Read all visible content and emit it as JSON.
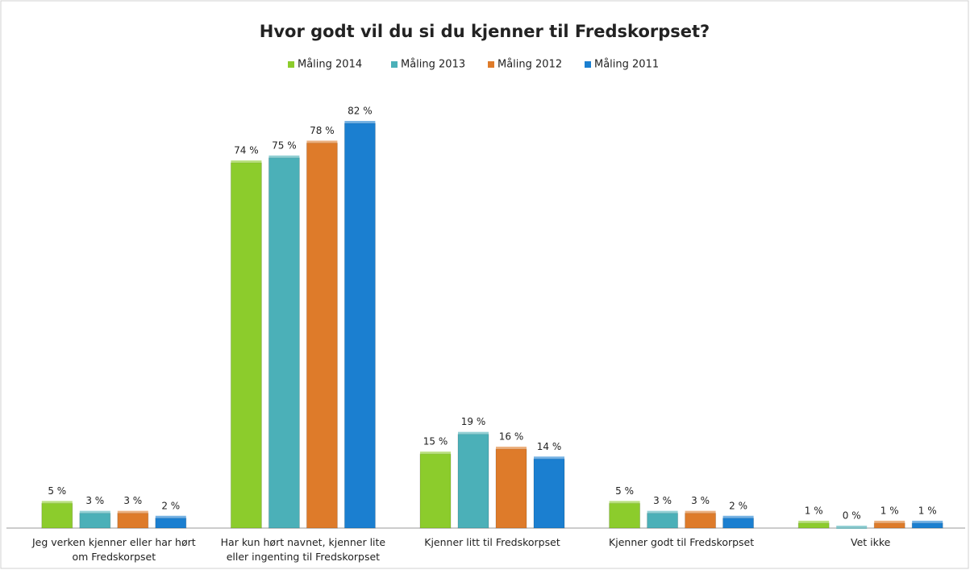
{
  "chart_data": {
    "type": "bar",
    "title": "Hvor godt vil du si du kjenner til Fredskorpset?",
    "categories": [
      "Jeg verken kjenner eller har hørt om Fredskorpset",
      "Har kun hørt navnet, kjenner lite eller ingenting til Fredskorpset",
      "Kjenner litt til Fredskorpset",
      "Kjenner godt til Fredskorpset",
      "Vet ikke"
    ],
    "series": [
      {
        "name": "Måling 2014",
        "color": "#8ccc2c",
        "values": [
          5,
          74,
          15,
          5,
          1
        ],
        "value_labels": [
          "5 %",
          "74 %",
          "15 %",
          "5 %",
          "1 %"
        ]
      },
      {
        "name": "Måling 2013",
        "color": "#4bb0b8",
        "values": [
          3,
          75,
          19,
          3,
          0
        ],
        "value_labels": [
          "3 %",
          "75 %",
          "19 %",
          "3 %",
          "0 %"
        ]
      },
      {
        "name": "Måling 2012",
        "color": "#de7b2a",
        "values": [
          3,
          78,
          16,
          3,
          1
        ],
        "value_labels": [
          "3 %",
          "78 %",
          "16 %",
          "3 %",
          "1 %"
        ]
      },
      {
        "name": "Måling 2011",
        "color": "#1b7fd0",
        "values": [
          2,
          82,
          14,
          2,
          1
        ],
        "value_labels": [
          "2 %",
          "82 %",
          "14 %",
          "2 %",
          "1 %"
        ]
      }
    ],
    "ylim": [
      0,
      90
    ],
    "legend": "top"
  }
}
